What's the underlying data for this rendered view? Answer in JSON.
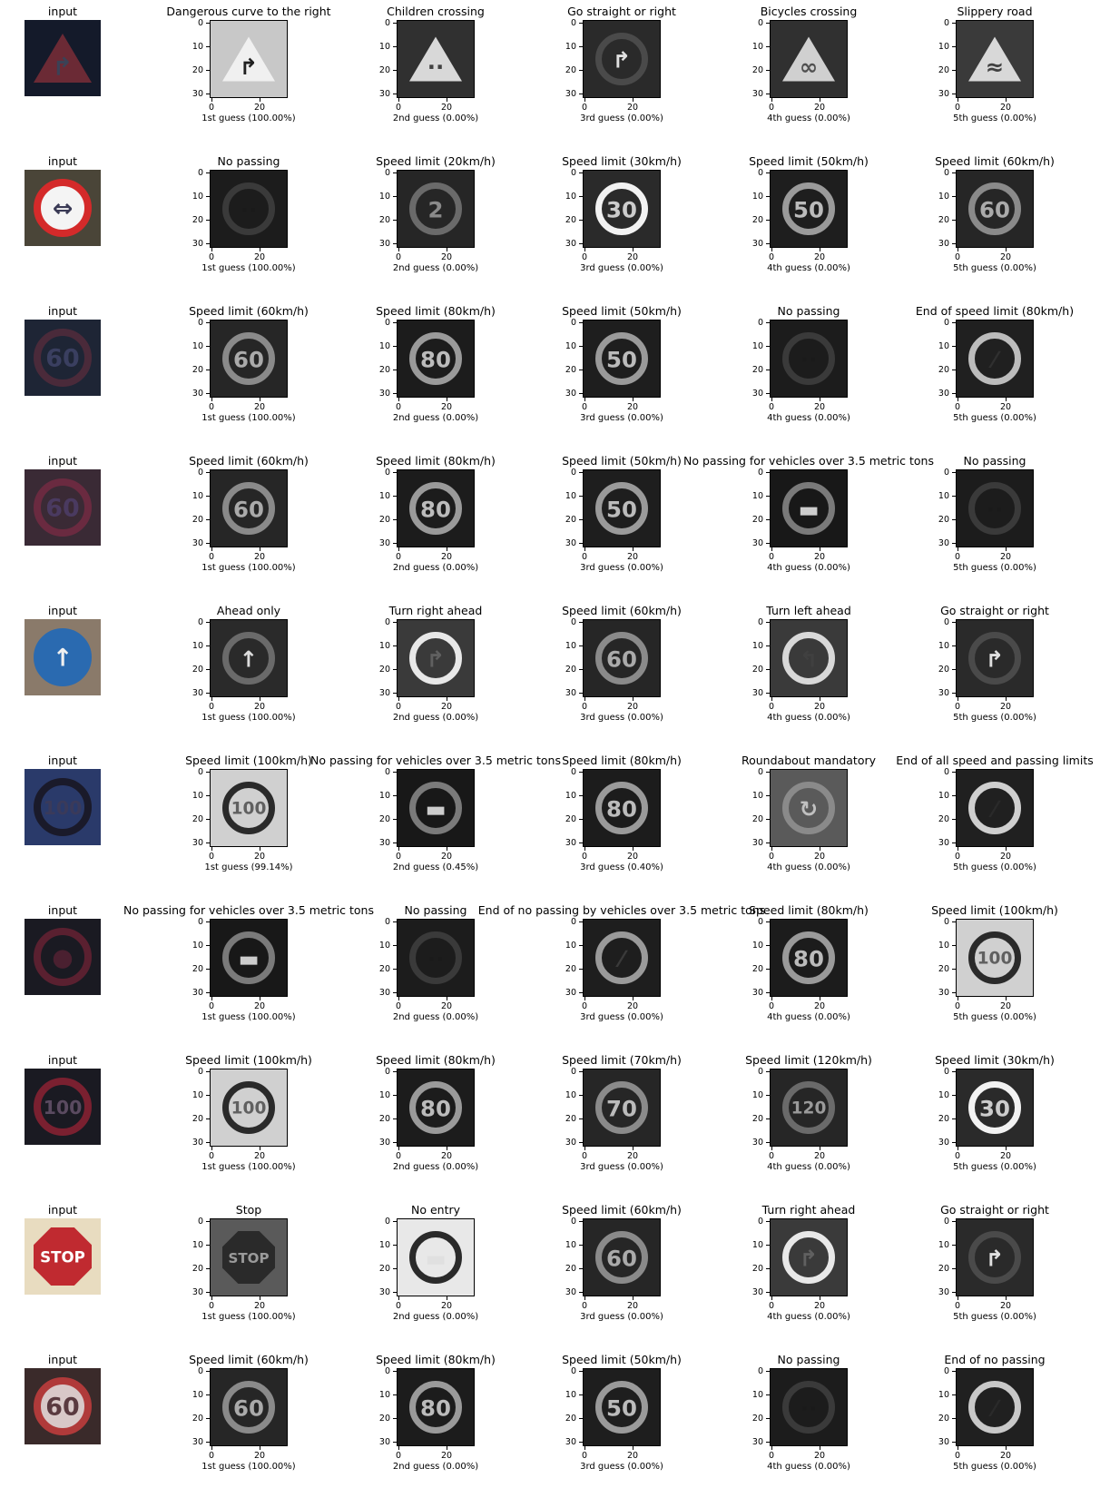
{
  "rows": [
    {
      "input": {
        "label": "input",
        "bg": "#141a2a",
        "shape": "triangle",
        "color": "#6b2a35",
        "glyph": "↱",
        "glyph_color": "#3b4256"
      },
      "guesses": [
        {
          "title": "Dangerous curve to the right",
          "caption": "1st guess (100.00%)",
          "bg": "#c8c8c8",
          "shape": "triangle",
          "color": "#f0f0f0",
          "glyph": "↱",
          "glyph_color": "#202020"
        },
        {
          "title": "Children crossing",
          "caption": "2nd guess (0.00%)",
          "bg": "#303030",
          "shape": "triangle",
          "color": "#d8d8d8",
          "glyph": "∙∙",
          "glyph_color": "#404040"
        },
        {
          "title": "Go straight or right",
          "caption": "3rd guess (0.00%)",
          "bg": "#2a2a2a",
          "shape": "circle",
          "color": "#4a4a4a",
          "glyph": "↱",
          "glyph_color": "#e0e0e0"
        },
        {
          "title": "Bicycles crossing",
          "caption": "4th guess (0.00%)",
          "bg": "#303030",
          "shape": "triangle",
          "color": "#d0d0d0",
          "glyph": "∞",
          "glyph_color": "#505050"
        },
        {
          "title": "Slippery road",
          "caption": "5th guess (0.00%)",
          "bg": "#3a3a3a",
          "shape": "triangle",
          "color": "#d8d8d8",
          "glyph": "≈",
          "glyph_color": "#404040"
        }
      ]
    },
    {
      "input": {
        "label": "input",
        "bg": "#4a4538",
        "shape": "circle",
        "color": "#d42a2a",
        "glyph": "⇔",
        "glyph_color": "#3a3a55",
        "fill": "#f4f4f4"
      },
      "guesses": [
        {
          "title": "No passing",
          "caption": "1st guess (100.00%)",
          "bg": "#1c1c1c",
          "shape": "circle",
          "color": "#3a3a3a",
          "glyph": "··",
          "glyph_color": "#1a1a1a"
        },
        {
          "title": "Speed limit (20km/h)",
          "caption": "2nd guess (0.00%)",
          "bg": "#262626",
          "shape": "circle",
          "color": "#6a6a6a",
          "glyph": "2",
          "glyph_color": "#8a8a8a"
        },
        {
          "title": "Speed limit (30km/h)",
          "caption": "3rd guess (0.00%)",
          "bg": "#2a2a2a",
          "shape": "circle",
          "color": "#f2f2f2",
          "glyph": "30",
          "glyph_color": "#cccccc"
        },
        {
          "title": "Speed limit (50km/h)",
          "caption": "4th guess (0.00%)",
          "bg": "#1e1e1e",
          "shape": "circle",
          "color": "#9a9a9a",
          "glyph": "50",
          "glyph_color": "#bbbbbb"
        },
        {
          "title": "Speed limit (60km/h)",
          "caption": "5th guess (0.00%)",
          "bg": "#262626",
          "shape": "circle",
          "color": "#8a8a8a",
          "glyph": "60",
          "glyph_color": "#aaaaaa"
        }
      ]
    },
    {
      "input": {
        "label": "input",
        "bg": "#1e2535",
        "shape": "circle",
        "color": "#4a2a3a",
        "glyph": "60",
        "glyph_color": "#3a3f60"
      },
      "guesses": [
        {
          "title": "Speed limit (60km/h)",
          "caption": "1st guess (100.00%)",
          "bg": "#262626",
          "shape": "circle",
          "color": "#8a8a8a",
          "glyph": "60",
          "glyph_color": "#aaaaaa"
        },
        {
          "title": "Speed limit (80km/h)",
          "caption": "2nd guess (0.00%)",
          "bg": "#1c1c1c",
          "shape": "circle",
          "color": "#9a9a9a",
          "glyph": "80",
          "glyph_color": "#bbbbbb"
        },
        {
          "title": "Speed limit (50km/h)",
          "caption": "3rd guess (0.00%)",
          "bg": "#1e1e1e",
          "shape": "circle",
          "color": "#9a9a9a",
          "glyph": "50",
          "glyph_color": "#bbbbbb"
        },
        {
          "title": "No passing",
          "caption": "4th guess (0.00%)",
          "bg": "#1c1c1c",
          "shape": "circle",
          "color": "#3a3a3a",
          "glyph": "··",
          "glyph_color": "#1a1a1a"
        },
        {
          "title": "End of speed limit (80km/h)",
          "caption": "5th guess (0.00%)",
          "bg": "#202020",
          "shape": "circle",
          "color": "#bcbcbc",
          "glyph": "⁄",
          "glyph_color": "#303030"
        }
      ]
    },
    {
      "input": {
        "label": "input",
        "bg": "#3a2a35",
        "shape": "circle",
        "color": "#6a2a40",
        "glyph": "60",
        "glyph_color": "#4a3a60"
      },
      "guesses": [
        {
          "title": "Speed limit (60km/h)",
          "caption": "1st guess (100.00%)",
          "bg": "#262626",
          "shape": "circle",
          "color": "#8a8a8a",
          "glyph": "60",
          "glyph_color": "#aaaaaa"
        },
        {
          "title": "Speed limit (80km/h)",
          "caption": "2nd guess (0.00%)",
          "bg": "#1c1c1c",
          "shape": "circle",
          "color": "#9a9a9a",
          "glyph": "80",
          "glyph_color": "#bbbbbb"
        },
        {
          "title": "Speed limit (50km/h)",
          "caption": "3rd guess (0.00%)",
          "bg": "#1e1e1e",
          "shape": "circle",
          "color": "#9a9a9a",
          "glyph": "50",
          "glyph_color": "#bbbbbb"
        },
        {
          "title": "No passing for vehicles over 3.5 metric tons",
          "caption": "4th guess (0.00%)",
          "bg": "#181818",
          "shape": "circle",
          "color": "#7a7a7a",
          "glyph": "▬",
          "glyph_color": "#cccccc"
        },
        {
          "title": "No passing",
          "caption": "5th guess (0.00%)",
          "bg": "#1c1c1c",
          "shape": "circle",
          "color": "#3a3a3a",
          "glyph": "··",
          "glyph_color": "#1a1a1a"
        }
      ]
    },
    {
      "input": {
        "label": "input",
        "bg": "#8a7a6a",
        "shape": "circle",
        "color": "#2a6ab0",
        "glyph": "↑",
        "glyph_color": "#f0f0f0",
        "fill": "#2a6ab0"
      },
      "guesses": [
        {
          "title": "Ahead only",
          "caption": "1st guess (100.00%)",
          "bg": "#2a2a2a",
          "shape": "circle",
          "color": "#6a6a6a",
          "glyph": "↑",
          "glyph_color": "#dddddd"
        },
        {
          "title": "Turn right ahead",
          "caption": "2nd guess (0.00%)",
          "bg": "#3a3a3a",
          "shape": "circle",
          "color": "#e8e8e8",
          "glyph": "↱",
          "glyph_color": "#606060"
        },
        {
          "title": "Speed limit (60km/h)",
          "caption": "3rd guess (0.00%)",
          "bg": "#262626",
          "shape": "circle",
          "color": "#8a8a8a",
          "glyph": "60",
          "glyph_color": "#aaaaaa"
        },
        {
          "title": "Turn left ahead",
          "caption": "4th guess (0.00%)",
          "bg": "#3a3a3a",
          "shape": "circle",
          "color": "#d8d8d8",
          "glyph": "↰",
          "glyph_color": "#404040"
        },
        {
          "title": "Go straight or right",
          "caption": "5th guess (0.00%)",
          "bg": "#2a2a2a",
          "shape": "circle",
          "color": "#4a4a4a",
          "glyph": "↱",
          "glyph_color": "#e0e0e0"
        }
      ]
    },
    {
      "input": {
        "label": "input",
        "bg": "#2a3a6a",
        "shape": "circle",
        "color": "#1a1a2a",
        "glyph": "100",
        "glyph_color": "#3a3a5a"
      },
      "guesses": [
        {
          "title": "Speed limit (100km/h)",
          "caption": "1st guess (99.14%)",
          "bg": "#d0d0d0",
          "shape": "circle",
          "color": "#2a2a2a",
          "glyph": "100",
          "glyph_color": "#606060"
        },
        {
          "title": "No passing for vehicles over 3.5 metric tons",
          "caption": "2nd guess (0.45%)",
          "bg": "#181818",
          "shape": "circle",
          "color": "#7a7a7a",
          "glyph": "▬",
          "glyph_color": "#cccccc"
        },
        {
          "title": "Speed limit (80km/h)",
          "caption": "3rd guess (0.40%)",
          "bg": "#1c1c1c",
          "shape": "circle",
          "color": "#9a9a9a",
          "glyph": "80",
          "glyph_color": "#bbbbbb"
        },
        {
          "title": "Roundabout mandatory",
          "caption": "4th guess (0.00%)",
          "bg": "#5a5a5a",
          "shape": "circle",
          "color": "#8a8a8a",
          "glyph": "↻",
          "glyph_color": "#c0c0c0"
        },
        {
          "title": "End of all speed and passing limits",
          "caption": "5th guess (0.00%)",
          "bg": "#202020",
          "shape": "circle",
          "color": "#cfcfcf",
          "glyph": "⁄",
          "glyph_color": "#2a2a2a"
        }
      ]
    },
    {
      "input": {
        "label": "input",
        "bg": "#1a1a22",
        "shape": "circle",
        "color": "#5a2030",
        "glyph": "●",
        "glyph_color": "#4a2030"
      },
      "guesses": [
        {
          "title": "No passing for vehicles over 3.5 metric tons",
          "caption": "1st guess (100.00%)",
          "bg": "#181818",
          "shape": "circle",
          "color": "#7a7a7a",
          "glyph": "▬",
          "glyph_color": "#cccccc"
        },
        {
          "title": "No passing",
          "caption": "2nd guess (0.00%)",
          "bg": "#1c1c1c",
          "shape": "circle",
          "color": "#3a3a3a",
          "glyph": "··",
          "glyph_color": "#1a1a1a"
        },
        {
          "title": "End of no passing by vehicles over 3.5 metric tons",
          "caption": "3rd guess (0.00%)",
          "bg": "#1e1e1e",
          "shape": "circle",
          "color": "#9a9a9a",
          "glyph": "⁄",
          "glyph_color": "#3a3a3a"
        },
        {
          "title": "Speed limit (80km/h)",
          "caption": "4th guess (0.00%)",
          "bg": "#1c1c1c",
          "shape": "circle",
          "color": "#9a9a9a",
          "glyph": "80",
          "glyph_color": "#bbbbbb"
        },
        {
          "title": "Speed limit (100km/h)",
          "caption": "5th guess (0.00%)",
          "bg": "#d0d0d0",
          "shape": "circle",
          "color": "#2a2a2a",
          "glyph": "100",
          "glyph_color": "#606060"
        }
      ]
    },
    {
      "input": {
        "label": "input",
        "bg": "#1a1a22",
        "shape": "circle",
        "color": "#7a2030",
        "glyph": "100",
        "glyph_color": "#5a4a60"
      },
      "guesses": [
        {
          "title": "Speed limit (100km/h)",
          "caption": "1st guess (100.00%)",
          "bg": "#d0d0d0",
          "shape": "circle",
          "color": "#2a2a2a",
          "glyph": "100",
          "glyph_color": "#606060"
        },
        {
          "title": "Speed limit (80km/h)",
          "caption": "2nd guess (0.00%)",
          "bg": "#1c1c1c",
          "shape": "circle",
          "color": "#9a9a9a",
          "glyph": "80",
          "glyph_color": "#bbbbbb"
        },
        {
          "title": "Speed limit (70km/h)",
          "caption": "3rd guess (0.00%)",
          "bg": "#262626",
          "shape": "circle",
          "color": "#8a8a8a",
          "glyph": "70",
          "glyph_color": "#bbbbbb"
        },
        {
          "title": "Speed limit (120km/h)",
          "caption": "4th guess (0.00%)",
          "bg": "#262626",
          "shape": "circle",
          "color": "#6a6a6a",
          "glyph": "120",
          "glyph_color": "#9a9a9a"
        },
        {
          "title": "Speed limit (30km/h)",
          "caption": "5th guess (0.00%)",
          "bg": "#2a2a2a",
          "shape": "circle",
          "color": "#f2f2f2",
          "glyph": "30",
          "glyph_color": "#cccccc"
        }
      ]
    },
    {
      "input": {
        "label": "input",
        "bg": "#e8dcc0",
        "shape": "octagon",
        "color": "#c02a30",
        "glyph": "STOP",
        "glyph_color": "#ffffff"
      },
      "guesses": [
        {
          "title": "Stop",
          "caption": "1st guess (100.00%)",
          "bg": "#5a5a5a",
          "shape": "octagon",
          "color": "#2a2a2a",
          "glyph": "STOP",
          "glyph_color": "#9a9a9a"
        },
        {
          "title": "No entry",
          "caption": "2nd guess (0.00%)",
          "bg": "#e8e8e8",
          "shape": "circle",
          "color": "#2a2a2a",
          "glyph": "▬",
          "glyph_color": "#e0e0e0"
        },
        {
          "title": "Speed limit (60km/h)",
          "caption": "3rd guess (0.00%)",
          "bg": "#262626",
          "shape": "circle",
          "color": "#8a8a8a",
          "glyph": "60",
          "glyph_color": "#aaaaaa"
        },
        {
          "title": "Turn right ahead",
          "caption": "4th guess (0.00%)",
          "bg": "#3a3a3a",
          "shape": "circle",
          "color": "#e8e8e8",
          "glyph": "↱",
          "glyph_color": "#606060"
        },
        {
          "title": "Go straight or right",
          "caption": "5th guess (0.00%)",
          "bg": "#2a2a2a",
          "shape": "circle",
          "color": "#4a4a4a",
          "glyph": "↱",
          "glyph_color": "#e0e0e0"
        }
      ]
    },
    {
      "input": {
        "label": "input",
        "bg": "#3a2a2a",
        "shape": "circle",
        "color": "#b03a3a",
        "glyph": "60",
        "glyph_color": "#5a3a40",
        "fill": "#d8c8c8"
      },
      "guesses": [
        {
          "title": "Speed limit (60km/h)",
          "caption": "1st guess (100.00%)",
          "bg": "#262626",
          "shape": "circle",
          "color": "#8a8a8a",
          "glyph": "60",
          "glyph_color": "#aaaaaa"
        },
        {
          "title": "Speed limit (80km/h)",
          "caption": "2nd guess (0.00%)",
          "bg": "#1c1c1c",
          "shape": "circle",
          "color": "#9a9a9a",
          "glyph": "80",
          "glyph_color": "#bbbbbb"
        },
        {
          "title": "Speed limit (50km/h)",
          "caption": "3rd guess (0.00%)",
          "bg": "#1e1e1e",
          "shape": "circle",
          "color": "#9a9a9a",
          "glyph": "50",
          "glyph_color": "#bbbbbb"
        },
        {
          "title": "No passing",
          "caption": "4th guess (0.00%)",
          "bg": "#1c1c1c",
          "shape": "circle",
          "color": "#3a3a3a",
          "glyph": "··",
          "glyph_color": "#1a1a1a"
        },
        {
          "title": "End of no passing",
          "caption": "5th guess (0.00%)",
          "bg": "#202020",
          "shape": "circle",
          "color": "#c8c8c8",
          "glyph": "⁄",
          "glyph_color": "#2a2a2a"
        }
      ]
    }
  ],
  "axis": {
    "x_ticks": [
      "0",
      "20"
    ],
    "y_ticks": [
      "0",
      "10",
      "20",
      "30"
    ]
  }
}
